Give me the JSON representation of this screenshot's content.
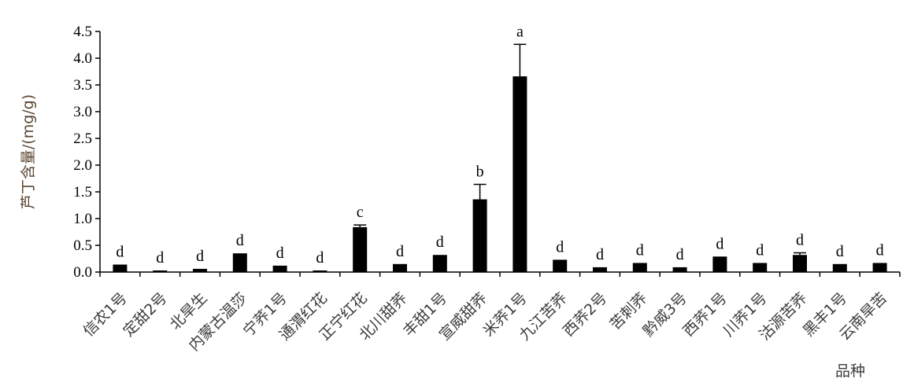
{
  "chart_data": {
    "type": "bar",
    "title": "",
    "xlabel": "品种",
    "ylabel": "芦丁含量/(mg/g)",
    "ylim": [
      0,
      4.5
    ],
    "yticks": [
      "0.0",
      "0.5",
      "1.0",
      "1.5",
      "2.0",
      "2.5",
      "3.0",
      "3.5",
      "4.0",
      "4.5"
    ],
    "grid": false,
    "categories": [
      "信农1号",
      "定甜2号",
      "北旱生",
      "内蒙古温莎",
      "宁荞1号",
      "通渭红花",
      "正宁红花",
      "北川甜荞",
      "丰甜1号",
      "宣威甜荞",
      "米荞1号",
      "九江苦荞",
      "西荞2号",
      "苦刺荞",
      "黔威3号",
      "西荞1号",
      "川荞1号",
      "沽源苦荞",
      "黑丰1号",
      "云南旱苦"
    ],
    "values": [
      0.14,
      0.03,
      0.06,
      0.35,
      0.12,
      0.03,
      0.84,
      0.15,
      0.32,
      1.36,
      3.66,
      0.23,
      0.09,
      0.17,
      0.09,
      0.29,
      0.17,
      0.32,
      0.15,
      0.17
    ],
    "errors": [
      0.0,
      0.0,
      0.0,
      0.0,
      0.0,
      0.0,
      0.04,
      0.0,
      0.0,
      0.28,
      0.6,
      0.0,
      0.0,
      0.0,
      0.0,
      0.0,
      0.0,
      0.04,
      0.0,
      0.0
    ],
    "significance": [
      "d",
      "d",
      "d",
      "d",
      "d",
      "d",
      "c",
      "d",
      "d",
      "b",
      "a",
      "d",
      "d",
      "d",
      "d",
      "d",
      "d",
      "d",
      "d",
      "d"
    ],
    "colors": {
      "bar": "#000000",
      "axis": "#000000"
    }
  }
}
